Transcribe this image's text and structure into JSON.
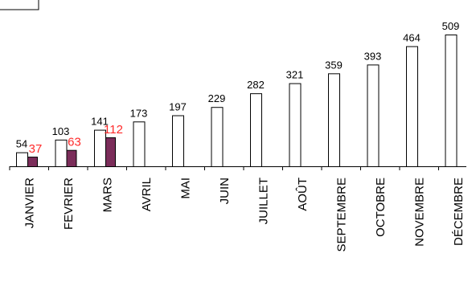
{
  "chart_data": {
    "type": "bar",
    "title": "",
    "xlabel": "",
    "ylabel": "",
    "categories": [
      "JANVIER",
      "FEVRIER",
      "MARS",
      "AVRIL",
      "MAI",
      "JUIN",
      "JUILLET",
      "AOÛT",
      "SEPTEMBRE",
      "OCTOBRE",
      "NOVEMBRE",
      "DÉCEMBRE"
    ],
    "series": [
      {
        "values": [
          54,
          103,
          141,
          173,
          197,
          229,
          282,
          321,
          359,
          393,
          464,
          509
        ],
        "color": "#ffffff",
        "label_color": "#000000"
      },
      {
        "values": [
          37,
          63,
          112,
          null,
          null,
          null,
          null,
          null,
          null,
          null,
          null,
          null
        ],
        "color": "#7b2d5a",
        "label_color": "#ff2a2a"
      }
    ],
    "ylim": [
      0,
      509
    ],
    "grid": false,
    "legend": "top-left"
  }
}
